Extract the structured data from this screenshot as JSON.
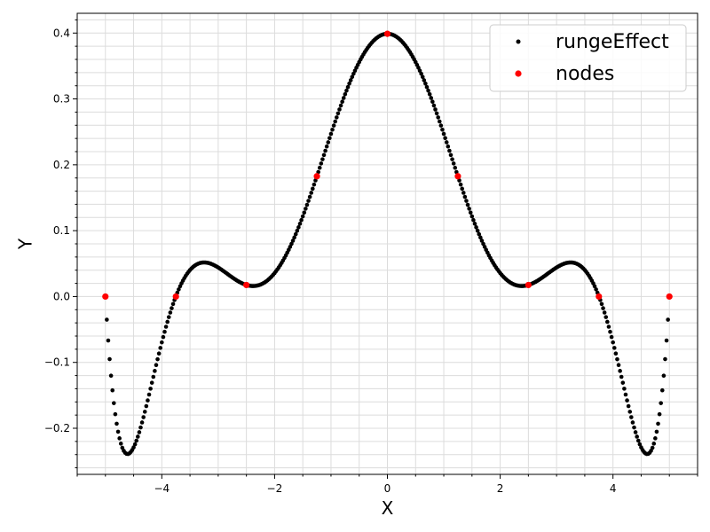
{
  "chart_data": {
    "type": "scatter",
    "xlabel": "X",
    "ylabel": "Y",
    "xlim": [
      -5.5,
      5.5
    ],
    "ylim": [
      -0.27,
      0.43
    ],
    "grid": true,
    "minor_grid": true,
    "legend": "top-right",
    "x_ticks": [
      -4,
      -2,
      0,
      2,
      4
    ],
    "y_ticks": [
      -0.2,
      -0.1,
      0.0,
      0.1,
      0.2,
      0.3,
      0.4
    ],
    "x_tick_labels": [
      "−4",
      "−2",
      "0",
      "2",
      "4"
    ],
    "y_tick_labels": [
      "−0.2",
      "−0.1",
      "0.0",
      "0.1",
      "0.2",
      "0.3",
      "0.4"
    ],
    "series": [
      {
        "name": "rungeEffect",
        "color": "#000000",
        "description": "interpolating polynomial sampled densely over [-5, 5]",
        "x_range": [
          -5,
          5
        ],
        "n_points": 401,
        "nodes_used": [
          -5,
          -3.75,
          -2.5,
          -1.25,
          0,
          1.25,
          2.5,
          3.75,
          5
        ]
      },
      {
        "name": "nodes",
        "color": "#ff0000",
        "x": [
          -5,
          -3.75,
          -2.5,
          -1.25,
          0,
          1.25,
          2.5,
          3.75,
          5
        ],
        "y": [
          0.0,
          0.0,
          0.0175,
          0.1826,
          0.3989,
          0.1826,
          0.0175,
          0.0,
          0.0
        ]
      }
    ]
  }
}
